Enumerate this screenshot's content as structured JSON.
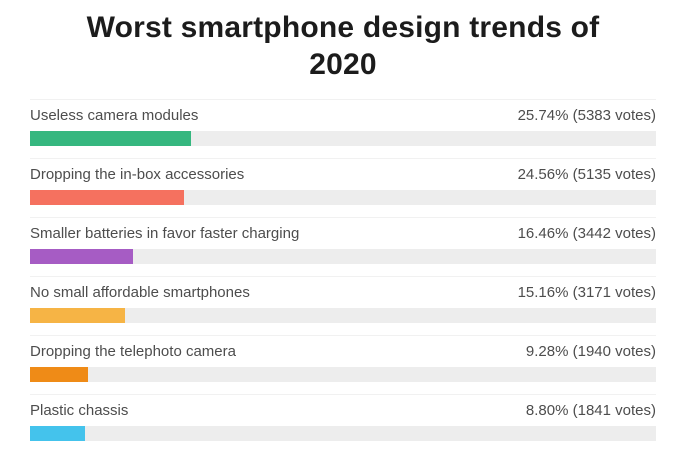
{
  "title": "Worst smartphone design trends of 2020",
  "chart_data": {
    "type": "bar",
    "orientation": "horizontal",
    "title": "Worst smartphone design trends of 2020",
    "categories": [
      "Useless camera modules",
      "Dropping the in-box accessories",
      "Smaller batteries in favor faster charging",
      "No small affordable smartphones",
      "Dropping the telephoto camera",
      "Plastic chassis"
    ],
    "values": [
      25.74,
      24.56,
      16.46,
      15.16,
      9.28,
      8.8
    ],
    "votes": [
      5383,
      5135,
      3442,
      3171,
      1940,
      1841
    ],
    "value_labels": [
      "25.74% (5383 votes)",
      "24.56% (5135 votes)",
      "16.46% (3442 votes)",
      "15.16% (3171 votes)",
      "9.28% (1940 votes)",
      "8.80% (1841 votes)"
    ],
    "colors": [
      "#35b77f",
      "#f5715f",
      "#a65cc4",
      "#f6b445",
      "#ef8b17",
      "#44c3ec"
    ],
    "track_color": "#ededed",
    "xlim": [
      0,
      100
    ],
    "grid": false,
    "legend": false
  }
}
